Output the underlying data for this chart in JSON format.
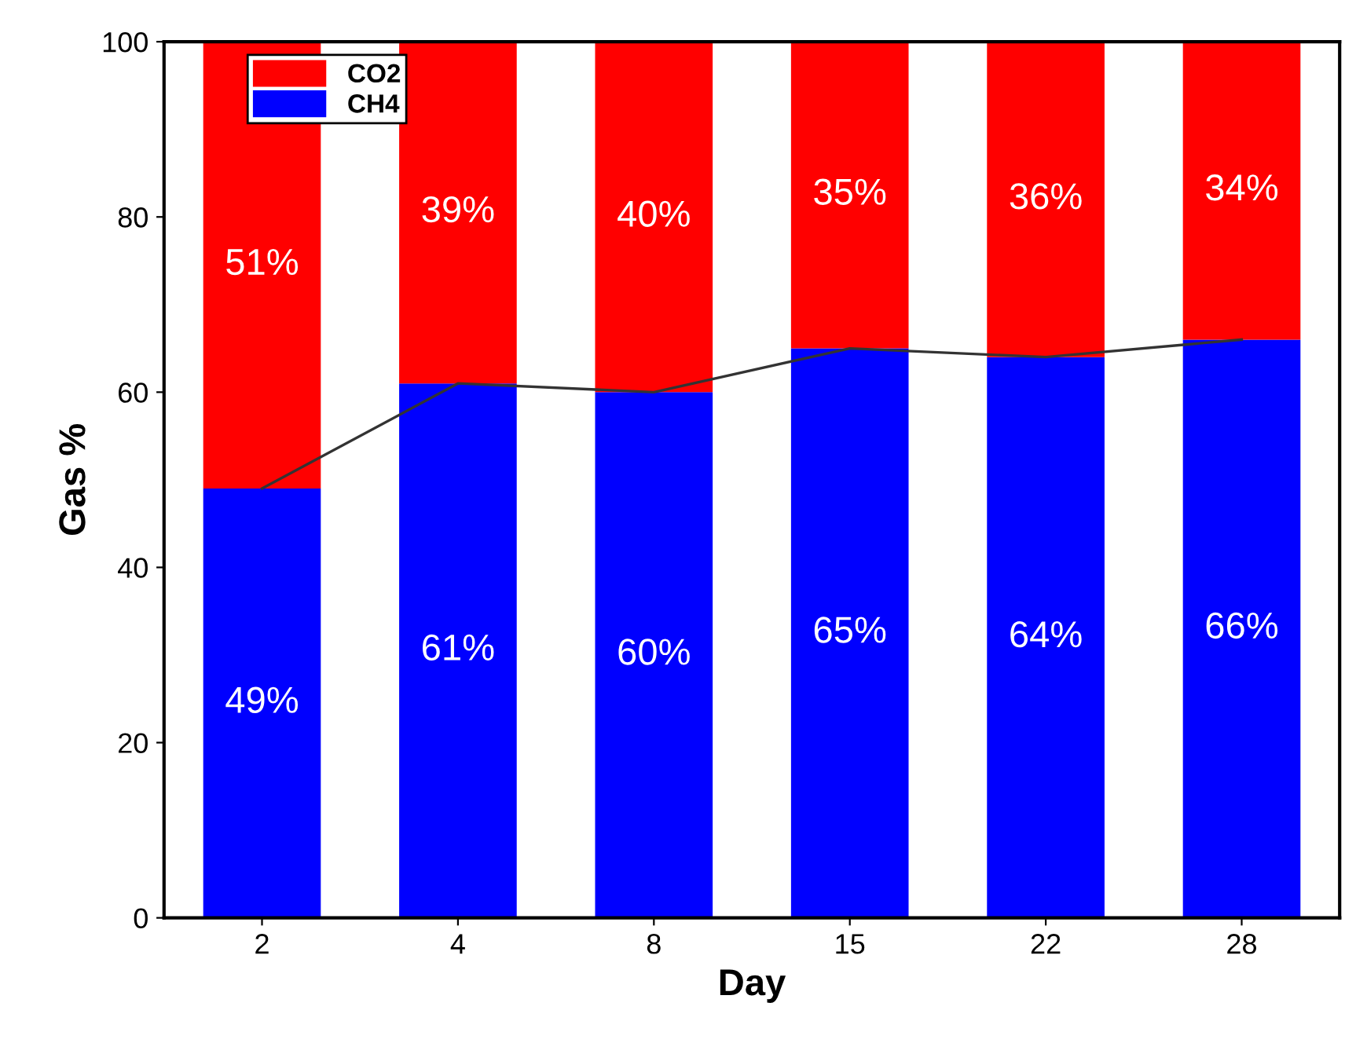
{
  "chart_data": {
    "type": "bar",
    "stacked": true,
    "xlabel": "Day",
    "ylabel": "Gas %",
    "categories": [
      "2",
      "4",
      "8",
      "15",
      "22",
      "28"
    ],
    "series": [
      {
        "name": "CH4",
        "color": "#0000ff",
        "values": [
          49,
          61,
          60,
          65,
          64,
          66
        ],
        "value_labels": [
          "49%",
          "61%",
          "60%",
          "65%",
          "64%",
          "66%"
        ]
      },
      {
        "name": "CO2",
        "color": "#ff0000",
        "values": [
          51,
          39,
          40,
          35,
          36,
          34
        ],
        "value_labels": [
          "51%",
          "39%",
          "40%",
          "35%",
          "36%",
          "34%"
        ]
      },
      {
        "type": "line",
        "color": "#333333",
        "values": [
          49,
          61,
          60,
          65,
          64,
          66
        ]
      }
    ],
    "ylim": [
      0,
      100
    ],
    "yticks": [
      0,
      20,
      40,
      60,
      80,
      100
    ],
    "grid": false,
    "legend": "top left"
  }
}
